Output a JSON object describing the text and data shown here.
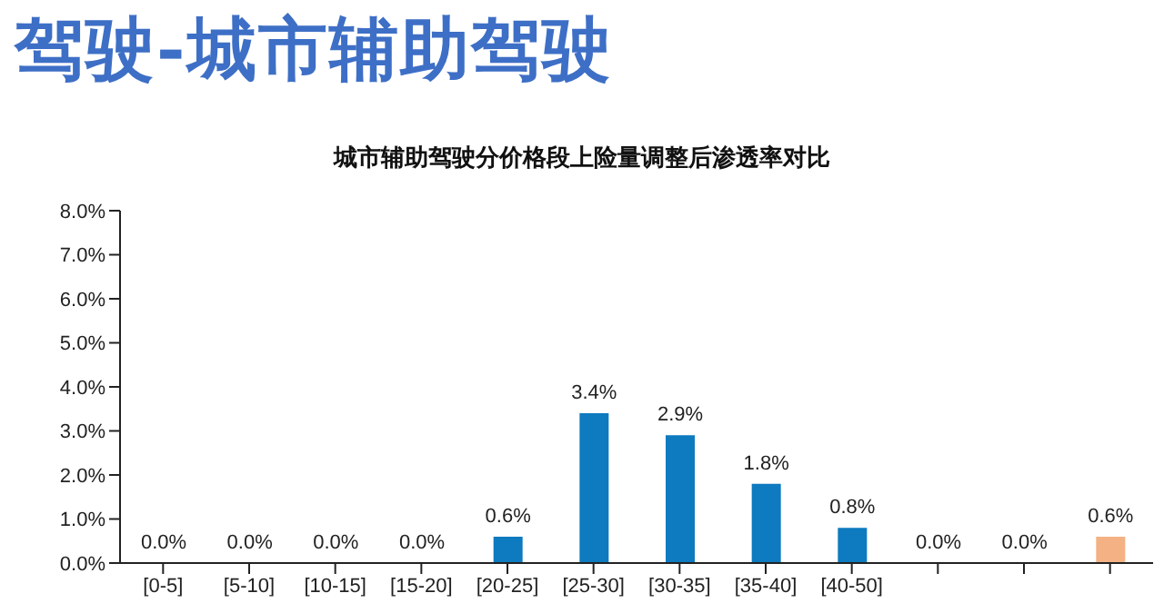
{
  "chart_data": {
    "type": "bar",
    "title": "驾驶-城市辅助驾驶",
    "subtitle": "城市辅助驾驶分价格段上险量调整后渗透率对比",
    "categories": [
      "[0-5]",
      "[5-10]",
      "[10-15]",
      "[15-20]",
      "[20-25]",
      "[25-30]",
      "[30-35]",
      "[35-40]",
      "[40-50]",
      null,
      null,
      null
    ],
    "values": [
      0,
      0,
      0,
      0,
      0.6,
      3.4,
      2.9,
      1.8,
      0.8,
      0,
      0,
      0.6
    ],
    "colors": [
      "#0e7abf",
      "#0e7abf",
      "#0e7abf",
      "#0e7abf",
      "#0e7abf",
      "#0e7abf",
      "#0e7abf",
      "#0e7abf",
      "#0e7abf",
      "#0e7abf",
      "#0e7abf",
      "#f4b183"
    ],
    "value_labels": [
      "0.0%",
      "0.0%",
      "0.0%",
      "0.0%",
      "0.6%",
      "3.4%",
      "2.9%",
      "1.8%",
      "0.8%",
      "0.0%",
      "0.0%",
      "0.6%"
    ],
    "ylim": [
      0,
      8
    ],
    "yticks": [
      {
        "value": 0,
        "label": "0.0%"
      },
      {
        "value": 1,
        "label": "1.0%"
      },
      {
        "value": 2,
        "label": "2.0%"
      },
      {
        "value": 3,
        "label": "3.0%"
      },
      {
        "value": 4,
        "label": "4.0%"
      },
      {
        "value": 5,
        "label": "5.0%"
      },
      {
        "value": 6,
        "label": "6.0%"
      },
      {
        "value": 7,
        "label": "7.0%"
      },
      {
        "value": 8,
        "label": "8.0%"
      }
    ],
    "grid": false,
    "legend": false
  }
}
